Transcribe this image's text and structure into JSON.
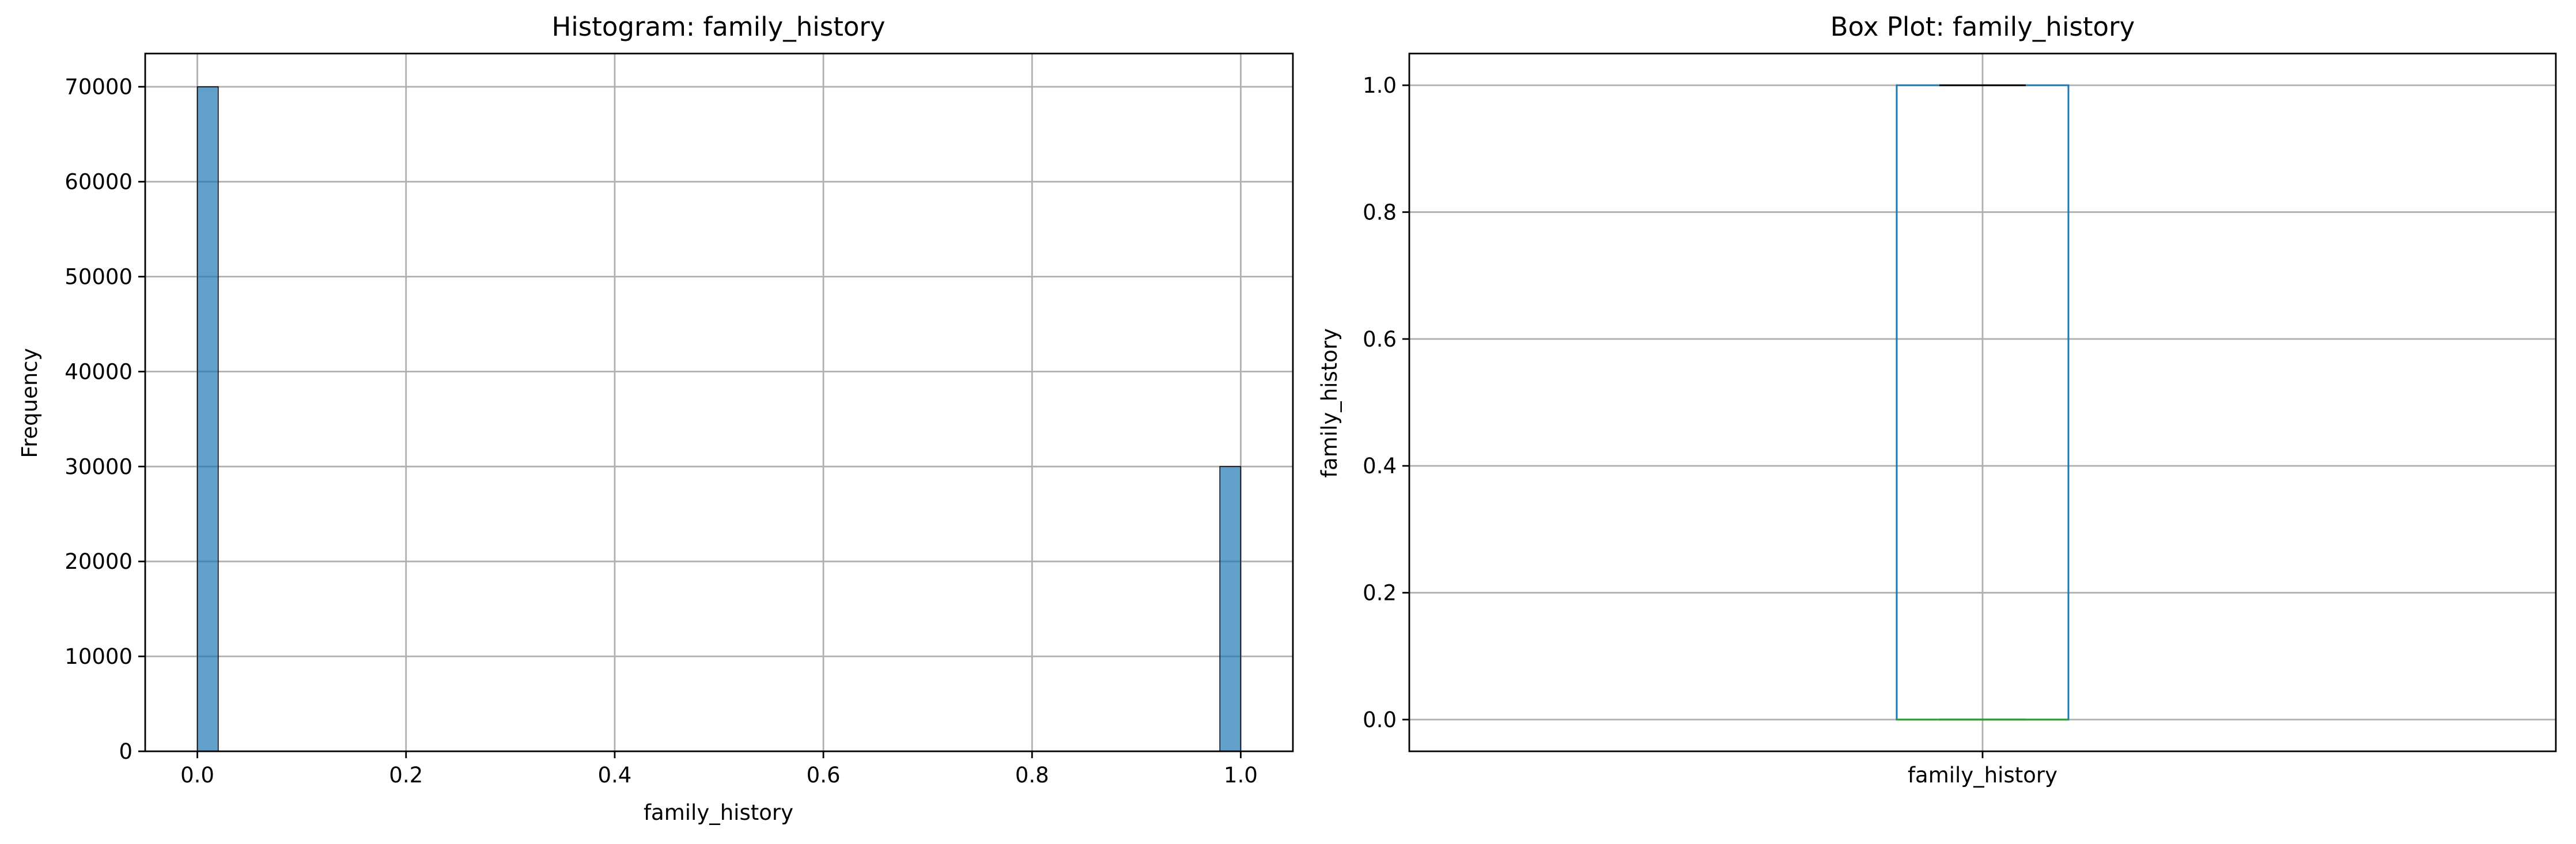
{
  "chart_data": [
    {
      "type": "bar",
      "title": "Histogram: family_history",
      "xlabel": "family_history",
      "ylabel": "Frequency",
      "xlim": [
        -0.05,
        1.05
      ],
      "ylim": [
        0,
        73500
      ],
      "xticks": [
        "0.0",
        "0.2",
        "0.4",
        "0.6",
        "0.8",
        "1.0"
      ],
      "yticks": [
        "0",
        "10000",
        "20000",
        "30000",
        "40000",
        "50000",
        "60000",
        "70000"
      ],
      "grid": true,
      "bar_color": "#1f77b4",
      "bins": [
        {
          "x0": 0.0,
          "x1": 0.02,
          "value": 70000
        },
        {
          "x0": 0.98,
          "x1": 1.0,
          "value": 30000
        }
      ]
    },
    {
      "type": "box",
      "title": "Box Plot: family_history",
      "xlabel": "",
      "ylabel": "family_history",
      "ylim": [
        -0.05,
        1.05
      ],
      "yticks": [
        "0.0",
        "0.2",
        "0.4",
        "0.6",
        "0.8",
        "1.0"
      ],
      "categories": [
        "family_history"
      ],
      "grid": true,
      "box_color": "#1f77b4",
      "median_color": "#2ca02c",
      "stats": {
        "min": 0.0,
        "q1": 0.0,
        "median": 0.0,
        "q3": 1.0,
        "max": 1.0
      }
    }
  ]
}
